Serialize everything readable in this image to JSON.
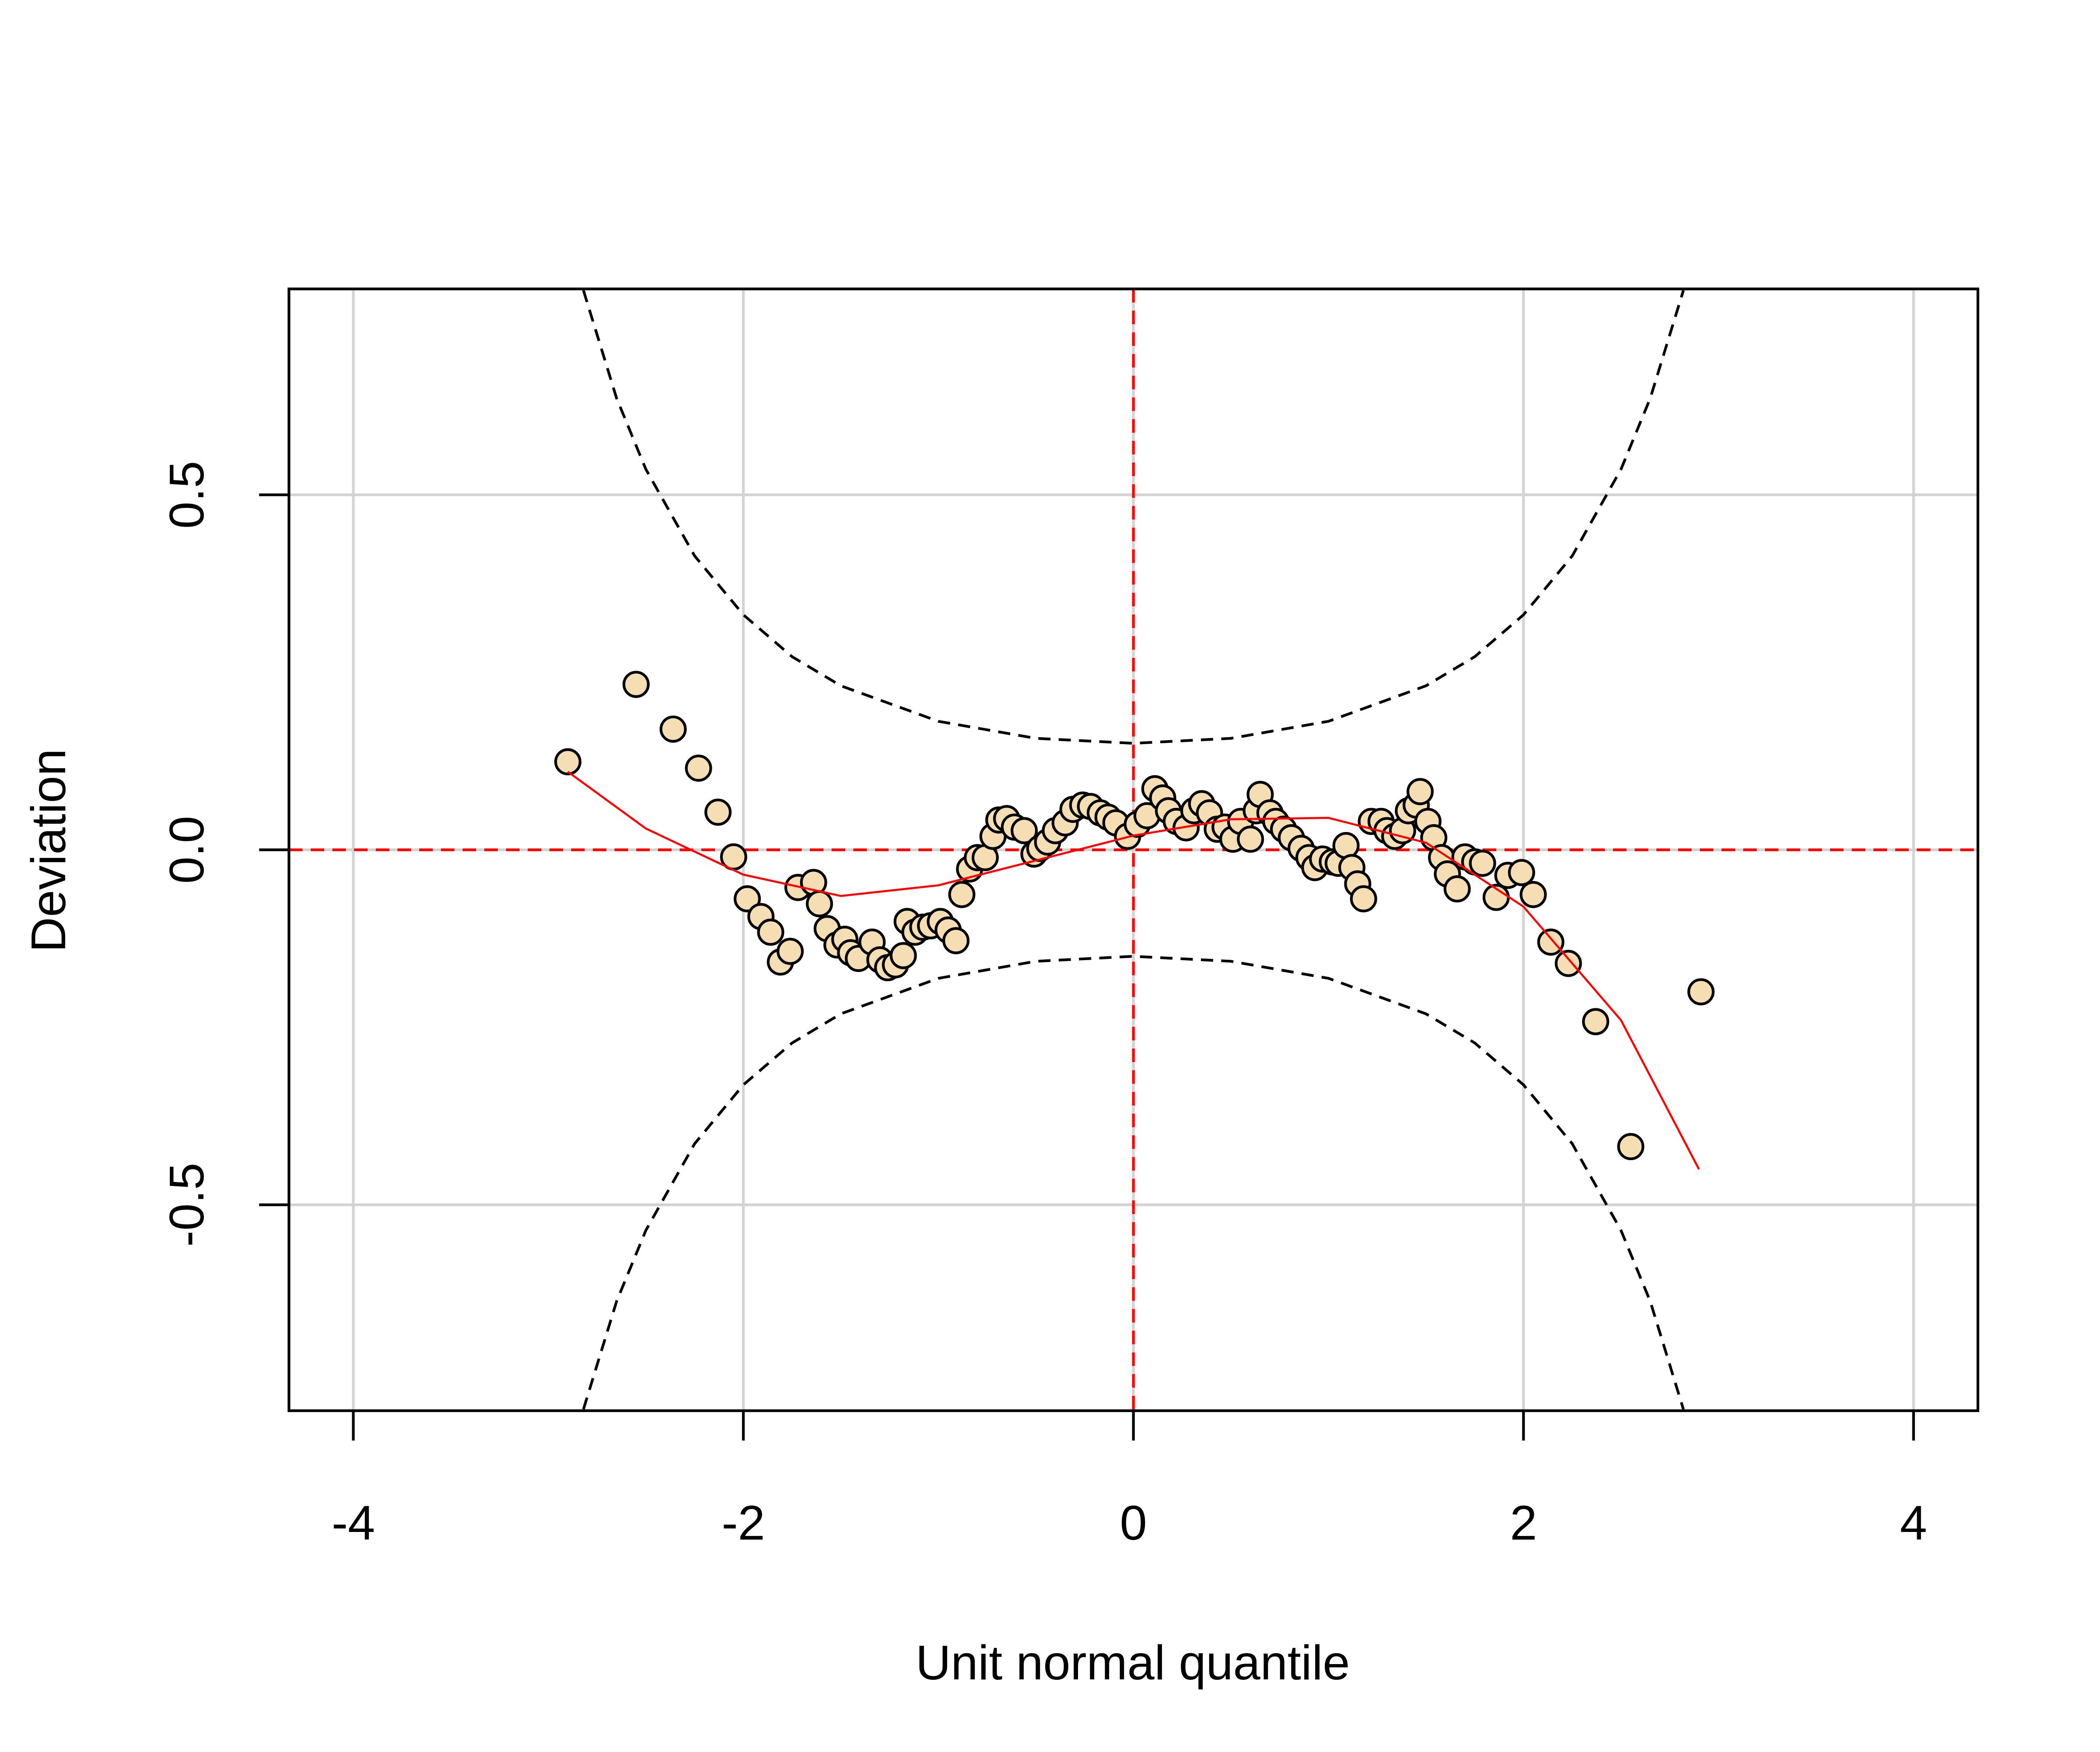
{
  "chart_data": {
    "type": "scatter",
    "xlabel": "Unit normal quantile",
    "ylabel": "Deviation",
    "xlim": [
      -4.33,
      4.33
    ],
    "ylim": [
      -0.79,
      0.79
    ],
    "xticks": [
      -4,
      -2,
      0,
      2,
      4
    ],
    "yticks": [
      -0.5,
      {
        "value": 0,
        "label": "0.0"
      },
      0.5
    ],
    "grid": true,
    "grid_color": "#d3d3d3",
    "point_color": "#f5deb3",
    "point_edge": "#000000",
    "x": [
      -2.9,
      -2.55,
      -2.36,
      -2.23,
      -2.13,
      -2.05,
      -1.98,
      -1.91,
      -1.86,
      -1.81,
      -1.76,
      -1.72,
      -1.64,
      -1.61,
      -1.57,
      -1.52,
      -1.48,
      -1.45,
      -1.41,
      -1.34,
      -1.3,
      -1.26,
      -1.22,
      -1.18,
      -1.16,
      -1.12,
      -1.08,
      -1.04,
      -0.99,
      -0.95,
      -0.91,
      -0.88,
      -0.84,
      -0.8,
      -0.76,
      -0.72,
      -0.69,
      -0.65,
      -0.61,
      -0.56,
      -0.51,
      -0.48,
      -0.44,
      -0.4,
      -0.35,
      -0.31,
      -0.26,
      -0.22,
      -0.17,
      -0.13,
      -0.09,
      -0.03,
      0.02,
      0.07,
      0.11,
      0.15,
      0.18,
      0.22,
      0.27,
      0.31,
      0.35,
      0.39,
      0.43,
      0.47,
      0.51,
      0.55,
      0.6,
      0.63,
      0.65,
      0.7,
      0.73,
      0.77,
      0.81,
      0.86,
      0.9,
      0.93,
      0.97,
      1.02,
      1.05,
      1.09,
      1.12,
      1.15,
      1.18,
      1.22,
      1.27,
      1.3,
      1.34,
      1.38,
      1.41,
      1.45,
      1.47,
      1.51,
      1.54,
      1.58,
      1.61,
      1.66,
      1.7,
      1.75,
      1.79,
      1.86,
      1.92,
      1.99,
      2.05,
      2.14,
      2.23,
      2.37,
      2.55,
      2.91
    ],
    "y": [
      0.124,
      0.233,
      0.17,
      0.115,
      0.053,
      -0.01,
      -0.069,
      -0.094,
      -0.116,
      -0.158,
      -0.143,
      -0.053,
      -0.046,
      -0.076,
      -0.111,
      -0.134,
      -0.126,
      -0.145,
      -0.153,
      -0.13,
      -0.155,
      -0.166,
      -0.162,
      -0.149,
      -0.101,
      -0.116,
      -0.109,
      -0.107,
      -0.101,
      -0.113,
      -0.128,
      -0.063,
      -0.027,
      -0.011,
      -0.011,
      0.019,
      0.042,
      0.044,
      0.032,
      0.027,
      -0.006,
      0.002,
      0.011,
      0.027,
      0.038,
      0.057,
      0.063,
      0.061,
      0.052,
      0.046,
      0.038,
      0.019,
      0.036,
      0.048,
      0.086,
      0.073,
      0.055,
      0.04,
      0.031,
      0.055,
      0.065,
      0.052,
      0.029,
      0.032,
      0.015,
      0.04,
      0.015,
      0.055,
      0.078,
      0.052,
      0.04,
      0.029,
      0.017,
      0.002,
      -0.011,
      -0.025,
      -0.013,
      -0.017,
      -0.019,
      0.006,
      -0.025,
      -0.048,
      -0.069,
      0.04,
      0.04,
      0.027,
      0.019,
      0.027,
      0.055,
      0.063,
      0.082,
      0.04,
      0.017,
      -0.011,
      -0.034,
      -0.055,
      -0.01,
      -0.017,
      -0.019,
      -0.067,
      -0.036,
      -0.032,
      -0.063,
      -0.13,
      -0.16,
      -0.242,
      -0.418,
      -0.2
    ],
    "fit": {
      "color": "#ff0000",
      "x": [
        -2.9,
        -2.5,
        -2.0,
        -1.5,
        -1.0,
        -0.5,
        0,
        0.5,
        1,
        1.5,
        2,
        2.5,
        2.9
      ],
      "y": [
        0.11,
        0.03,
        -0.035,
        -0.065,
        -0.05,
        -0.015,
        0.02,
        0.043,
        0.045,
        0.01,
        -0.08,
        -0.24,
        -0.45
      ]
    },
    "bands": {
      "color": "#000000",
      "x": [
        -2.82,
        -2.65,
        -2.5,
        -2.25,
        -2,
        -1.75,
        -1.5,
        -1,
        -0.5,
        0,
        0.5,
        1,
        1.5,
        1.75,
        2,
        2.25,
        2.5,
        2.65,
        2.82
      ],
      "upper": [
        0.788,
        0.636,
        0.536,
        0.414,
        0.331,
        0.272,
        0.231,
        0.181,
        0.157,
        0.15,
        0.157,
        0.181,
        0.231,
        0.272,
        0.331,
        0.414,
        0.536,
        0.636,
        0.788
      ],
      "lower": [
        -0.788,
        -0.636,
        -0.536,
        -0.414,
        -0.331,
        -0.272,
        -0.231,
        -0.181,
        -0.157,
        -0.15,
        -0.157,
        -0.181,
        -0.231,
        -0.272,
        -0.331,
        -0.414,
        -0.536,
        -0.636,
        -0.788
      ]
    },
    "reference": {
      "x": 0,
      "y": 0,
      "color": "#ff0000"
    }
  }
}
